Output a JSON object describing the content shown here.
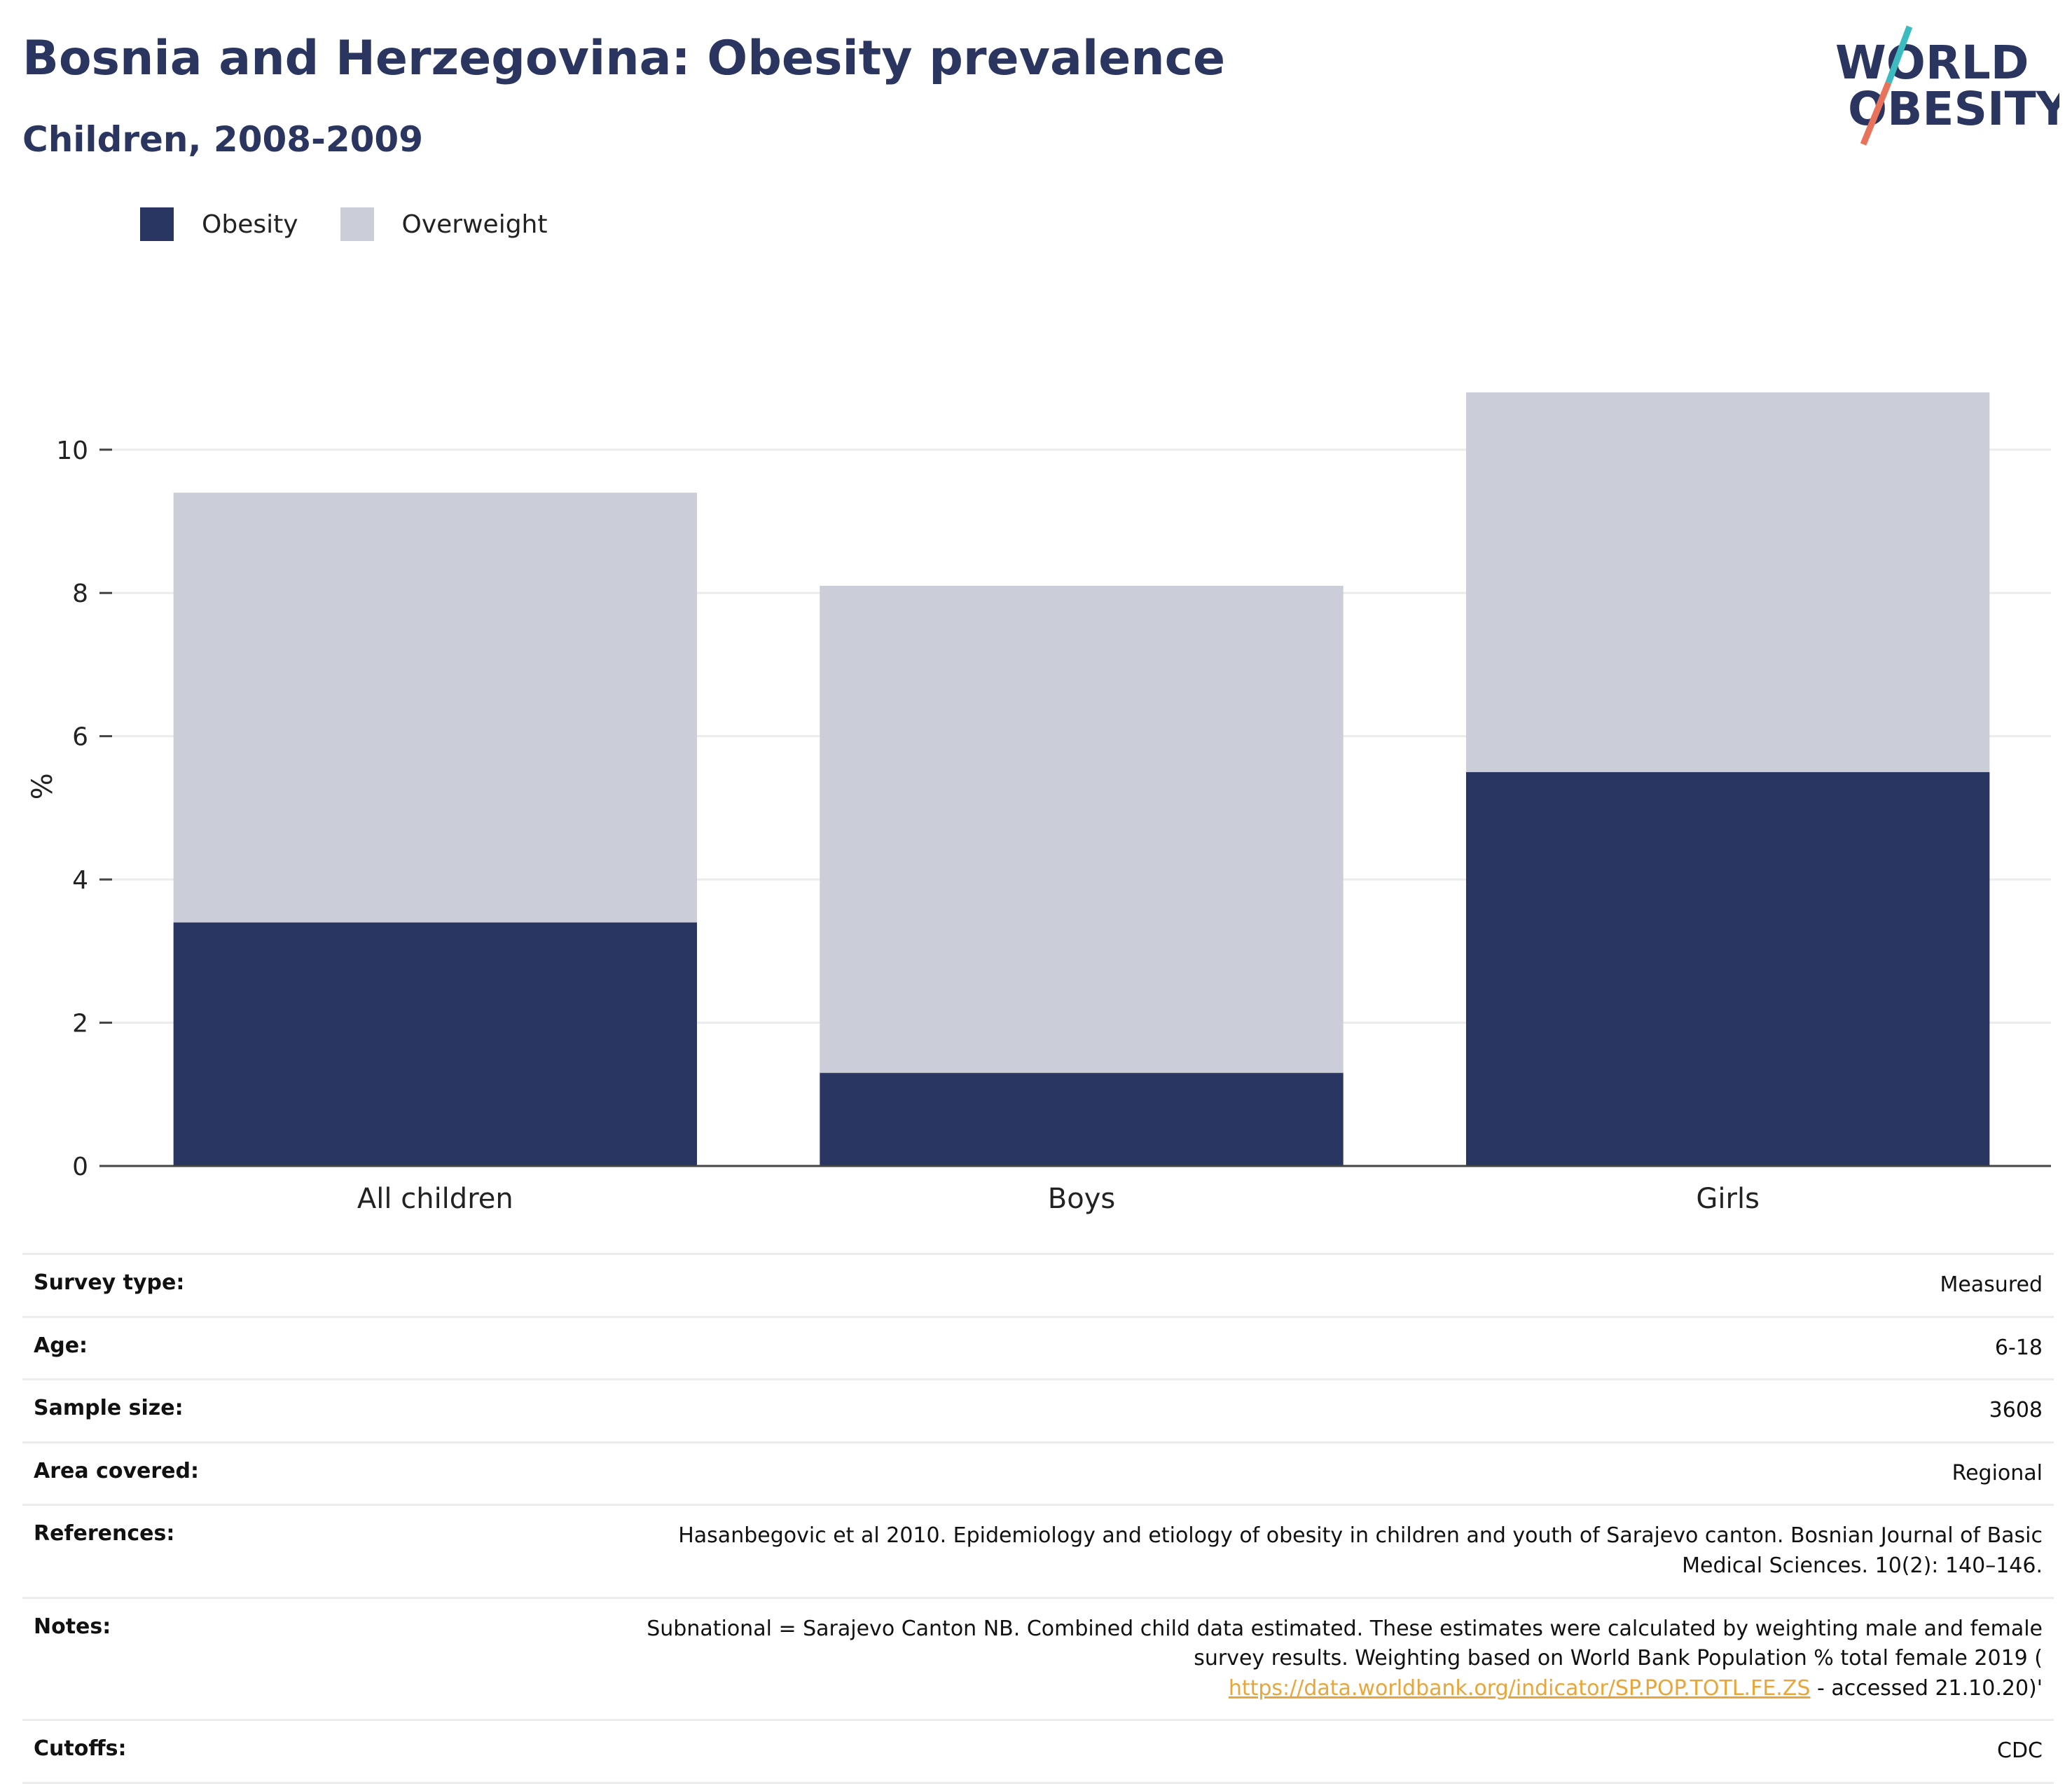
{
  "title": "Bosnia and Herzegovina: Obesity prevalence",
  "subtitle": "Children, 2008-2009",
  "logo": {
    "line1": "WORLD",
    "line2": "OBESITY"
  },
  "colors": {
    "obesity": "#2a3662",
    "overweight": "#cbcdd8",
    "title": "#2a3560",
    "link": "#e8a63a"
  },
  "chart_data": {
    "type": "bar",
    "stacked": true,
    "categories": [
      "All children",
      "Boys",
      "Girls"
    ],
    "series": [
      {
        "name": "Obesity",
        "values": [
          3.4,
          1.3,
          5.5
        ]
      },
      {
        "name": "Overweight",
        "values": [
          6.0,
          6.8,
          5.3
        ]
      }
    ],
    "ylabel": "%",
    "ylim": [
      0,
      10.8
    ],
    "yticks": [
      0,
      2,
      4,
      6,
      8,
      10
    ],
    "grid": true,
    "legend": "top-left"
  },
  "info": {
    "survey_type": {
      "label": "Survey type:",
      "value": "Measured"
    },
    "age": {
      "label": "Age:",
      "value": "6-18"
    },
    "sample_size": {
      "label": "Sample size:",
      "value": "3608"
    },
    "area": {
      "label": "Area covered:",
      "value": "Regional"
    },
    "references": {
      "label": "References:",
      "line1": "Hasanbegovic et al 2010. Epidemiology and etiology of obesity in children and youth of Sarajevo canton. Bosnian Journal of Basic",
      "line2": "Medical Sciences. 10(2): 140–146."
    },
    "notes": {
      "label": "Notes:",
      "line1": "Subnational = Sarajevo Canton NB. Combined child data estimated. These estimates were calculated by weighting male and female",
      "line2": "survey results. Weighting based on World Bank Population % total female 2019 (",
      "link": "https://data.worldbank.org/indicator/SP.POP.TOTL.FE.ZS",
      "tail": " - accessed 21.10.20)'"
    },
    "cutoffs": {
      "label": "Cutoffs:",
      "value": "CDC"
    }
  }
}
